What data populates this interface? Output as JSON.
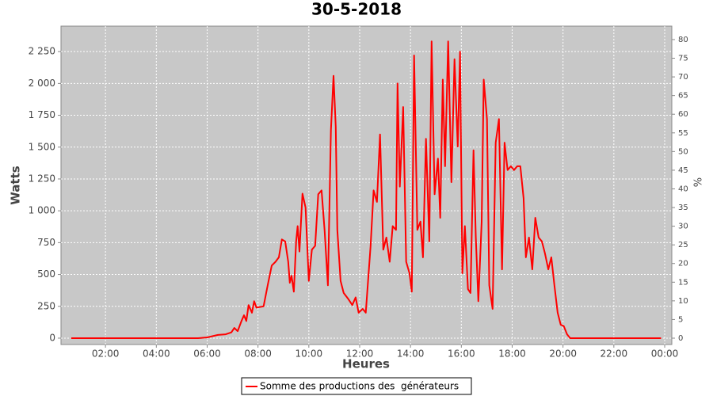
{
  "chart_data": {
    "type": "line",
    "title": "30-5-2018",
    "x_label": "Heures",
    "y_label": "Watts",
    "y2_label": "%",
    "x": [
      0.65,
      5.64,
      6.01,
      6.42,
      6.73,
      6.95,
      7.07,
      7.2,
      7.35,
      7.45,
      7.54,
      7.63,
      7.76,
      7.85,
      7.94,
      8.22,
      8.38,
      8.54,
      8.69,
      8.82,
      8.94,
      9.07,
      9.19,
      9.25,
      9.32,
      9.41,
      9.5,
      9.56,
      9.63,
      9.75,
      9.87,
      10.0,
      10.12,
      10.25,
      10.37,
      10.5,
      10.62,
      10.75,
      10.87,
      10.97,
      11.06,
      11.12,
      11.25,
      11.37,
      11.56,
      11.71,
      11.84,
      11.96,
      12.12,
      12.24,
      12.43,
      12.55,
      12.68,
      12.8,
      12.93,
      13.05,
      13.18,
      13.3,
      13.43,
      13.49,
      13.58,
      13.71,
      13.83,
      13.96,
      14.05,
      14.14,
      14.27,
      14.39,
      14.49,
      14.61,
      14.74,
      14.83,
      14.95,
      15.08,
      15.17,
      15.27,
      15.36,
      15.48,
      15.61,
      15.73,
      15.86,
      15.95,
      16.04,
      16.14,
      16.26,
      16.36,
      16.48,
      16.57,
      16.67,
      16.8,
      16.88,
      17.01,
      17.1,
      17.23,
      17.35,
      17.48,
      17.6,
      17.7,
      17.82,
      17.95,
      18.07,
      18.2,
      18.32,
      18.45,
      18.54,
      18.66,
      18.79,
      18.91,
      19.04,
      19.17,
      19.29,
      19.42,
      19.54,
      19.66,
      19.79,
      19.91,
      20.03,
      20.16,
      20.28,
      23.86
    ],
    "series": [
      {
        "name": "Somme des productions des  générateurs",
        "color": "#ff0000",
        "values": [
          0,
          0,
          6,
          25,
          30,
          45,
          80,
          55,
          135,
          180,
          135,
          260,
          200,
          290,
          240,
          250,
          415,
          570,
          600,
          635,
          775,
          760,
          600,
          435,
          490,
          365,
          760,
          880,
          680,
          1135,
          1025,
          450,
          695,
          725,
          1130,
          1160,
          850,
          415,
          1630,
          2060,
          1660,
          850,
          450,
          355,
          305,
          260,
          320,
          200,
          230,
          200,
          725,
          1160,
          1070,
          1600,
          695,
          790,
          600,
          880,
          850,
          2000,
          1190,
          1815,
          600,
          510,
          365,
          2220,
          850,
          915,
          635,
          1565,
          760,
          2330,
          1130,
          1410,
          945,
          2030,
          1350,
          2330,
          1225,
          2190,
          1505,
          2250,
          510,
          880,
          385,
          355,
          1475,
          790,
          290,
          915,
          2030,
          1720,
          415,
          230,
          1535,
          1720,
          540,
          1535,
          1320,
          1350,
          1320,
          1350,
          1350,
          1100,
          635,
          790,
          540,
          945,
          790,
          760,
          665,
          540,
          635,
          415,
          200,
          105,
          95,
          30,
          0,
          0
        ]
      }
    ],
    "xlim": [
      0.25,
      24.28
    ],
    "xticks": [
      {
        "value": 2,
        "label": "02:00"
      },
      {
        "value": 4,
        "label": "04:00"
      },
      {
        "value": 6,
        "label": "06:00"
      },
      {
        "value": 8,
        "label": "08:00"
      },
      {
        "value": 10,
        "label": "10:00"
      },
      {
        "value": 12,
        "label": "12:00"
      },
      {
        "value": 14,
        "label": "14:00"
      },
      {
        "value": 16,
        "label": "16:00"
      },
      {
        "value": 18,
        "label": "18:00"
      },
      {
        "value": 20,
        "label": "20:00"
      },
      {
        "value": 22,
        "label": "22:00"
      },
      {
        "value": 24,
        "label": "00:00"
      }
    ],
    "ylim": [
      -50,
      2450
    ],
    "yticks": [
      0,
      250,
      500,
      750,
      {
        "value": 1000,
        "label": "1 000"
      },
      {
        "value": 1250,
        "label": "1 250"
      },
      {
        "value": 1500,
        "label": "1 500"
      },
      {
        "value": 1750,
        "label": "1 750"
      },
      {
        "value": 2000,
        "label": "2 000"
      },
      {
        "value": 2250,
        "label": "2 250"
      }
    ],
    "y2lim": [
      -1.7,
      83.6
    ],
    "y2ticks": [
      0,
      5,
      10,
      15,
      20,
      25,
      30,
      35,
      40,
      45,
      50,
      55,
      60,
      65,
      70,
      75,
      80
    ],
    "grid": true,
    "legend": "bottom"
  }
}
